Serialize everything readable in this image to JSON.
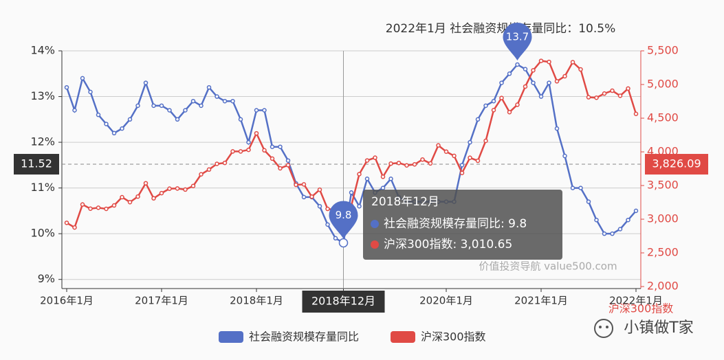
{
  "chart_data": {
    "type": "line",
    "title": "2022年1月    社会融资规模存量同比：10.5%",
    "categories": [
      "2016年1月",
      null,
      null,
      null,
      null,
      null,
      null,
      null,
      null,
      null,
      null,
      null,
      "2017年1月",
      null,
      null,
      null,
      null,
      null,
      null,
      null,
      null,
      null,
      null,
      null,
      "2018年1月",
      null,
      null,
      null,
      null,
      null,
      null,
      null,
      null,
      null,
      null,
      "2018年12月",
      null,
      null,
      null,
      null,
      null,
      null,
      null,
      null,
      null,
      null,
      null,
      null,
      "2020年1月",
      null,
      null,
      null,
      null,
      null,
      null,
      null,
      null,
      null,
      null,
      null,
      "2021年1月",
      null,
      null,
      null,
      null,
      null,
      null,
      null,
      null,
      null,
      null,
      null,
      "2022年1月"
    ],
    "series": [
      {
        "name": "社会融资规模存量同比",
        "color": "#5470c6",
        "values": [
          13.2,
          12.7,
          13.4,
          13.1,
          12.6,
          12.4,
          12.2,
          12.3,
          12.5,
          12.8,
          13.3,
          12.8,
          12.8,
          12.7,
          12.5,
          12.7,
          12.9,
          12.8,
          13.2,
          13.0,
          12.9,
          12.9,
          12.5,
          12.0,
          12.7,
          12.7,
          11.9,
          11.9,
          11.6,
          11.1,
          10.8,
          10.8,
          10.6,
          10.2,
          9.9,
          9.8,
          10.9,
          10.6,
          11.2,
          10.9,
          11.0,
          11.2,
          10.8,
          10.7,
          10.7,
          10.7,
          10.7,
          10.7,
          10.7,
          10.7,
          11.5,
          12.0,
          12.5,
          12.8,
          12.9,
          13.3,
          13.5,
          13.7,
          13.6,
          13.3,
          13.0,
          13.3,
          12.3,
          11.7,
          11.0,
          11.0,
          10.7,
          10.3,
          10.0,
          10.0,
          10.1,
          10.3,
          10.5
        ]
      },
      {
        "name": "沪深300指数",
        "color": "#e04a45",
        "axis": "y2",
        "values": [
          2946,
          2877,
          3218,
          3156,
          3170,
          3154,
          3204,
          3327,
          3253,
          3336,
          3534,
          3310,
          3387,
          3453,
          3456,
          3440,
          3493,
          3666,
          3737,
          3822,
          3836,
          4006,
          4006,
          4030,
          4275,
          4023,
          3899,
          3756,
          3802,
          3510,
          3517,
          3334,
          3438,
          3153,
          3138,
          3010.65,
          3201,
          3669,
          3872,
          3913,
          3630,
          3825,
          3835,
          3799,
          3814,
          3886,
          3828,
          4096,
          4003,
          3940,
          3687,
          3912,
          3868,
          4164,
          4620,
          4800,
          4590,
          4700,
          4970,
          5211,
          5351,
          5336,
          5048,
          5123,
          5332,
          5224,
          4811,
          4804,
          4866,
          4908,
          4833,
          4940,
          4564
        ],
        "value_labels": {
          "35": "3,010.65"
        }
      }
    ],
    "ylim": [
      8.8,
      14
    ],
    "yticks": [
      {
        "value": 9,
        "label": "9%"
      },
      {
        "value": 10,
        "label": "10%"
      },
      {
        "value": 11,
        "label": "11%"
      },
      {
        "value": 12,
        "label": "12%"
      },
      {
        "value": 13,
        "label": "13%"
      },
      {
        "value": 14,
        "label": "14%"
      }
    ],
    "y2lim": [
      1970,
      5500
    ],
    "y2ticks": [
      {
        "value": 2000,
        "label": "2,000"
      },
      {
        "value": 2500,
        "label": "2,500"
      },
      {
        "value": 3000,
        "label": "3,000"
      },
      {
        "value": 3500,
        "label": "3,500"
      },
      {
        "value": 4000,
        "label": "4,000"
      },
      {
        "value": 4500,
        "label": "4,500"
      },
      {
        "value": 5000,
        "label": "5,000"
      },
      {
        "value": 5500,
        "label": "5,500"
      }
    ],
    "y2_label": "沪深300指数",
    "grid": true,
    "legend": "bottom",
    "mark_point": "max",
    "crosshair": {
      "category": "2018年12月",
      "y": 11.52,
      "y2": {
        "value": 3826.09,
        "label": "3,826.09"
      }
    },
    "tooltip": {
      "rows": [
        "社会融资规模存量同比: 9.8",
        "沪深300指数: 3,010.65"
      ]
    },
    "watermarks": [
      "价值投资导航 value500.com",
      "小镇做T家"
    ]
  }
}
